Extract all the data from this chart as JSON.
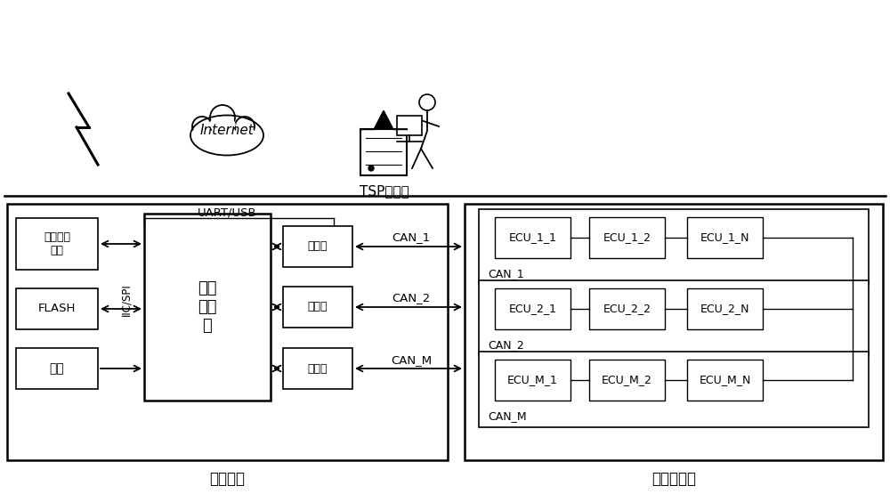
{
  "bg_color": "#ffffff",
  "title_left": "车载终端",
  "title_right": "车载控制器",
  "tsp_label": "TSP服务器",
  "uart_usb": "UART/USB",
  "iic_spi": "IIC/SPI",
  "cpu_label": "中央\n处理\n器",
  "wireless_label": "无线收发\n模块",
  "flash_label": "FLASH",
  "power_label": "电源",
  "transceiver_label": "收发器",
  "internet_label": "Internet",
  "can1_label": "CAN_1",
  "can2_label": "CAN_2",
  "canm_label": "CAN_M",
  "ecu_labels_row1": [
    "ECU_1_1",
    "ECU_1_2",
    "ECU_1_N"
  ],
  "ecu_labels_row2": [
    "ECU_2_1",
    "ECU_2_2",
    "ECU_2_N"
  ],
  "ecu_labels_row3": [
    "ECU_M_1",
    "ECU_M_2",
    "ECU_M_N"
  ]
}
